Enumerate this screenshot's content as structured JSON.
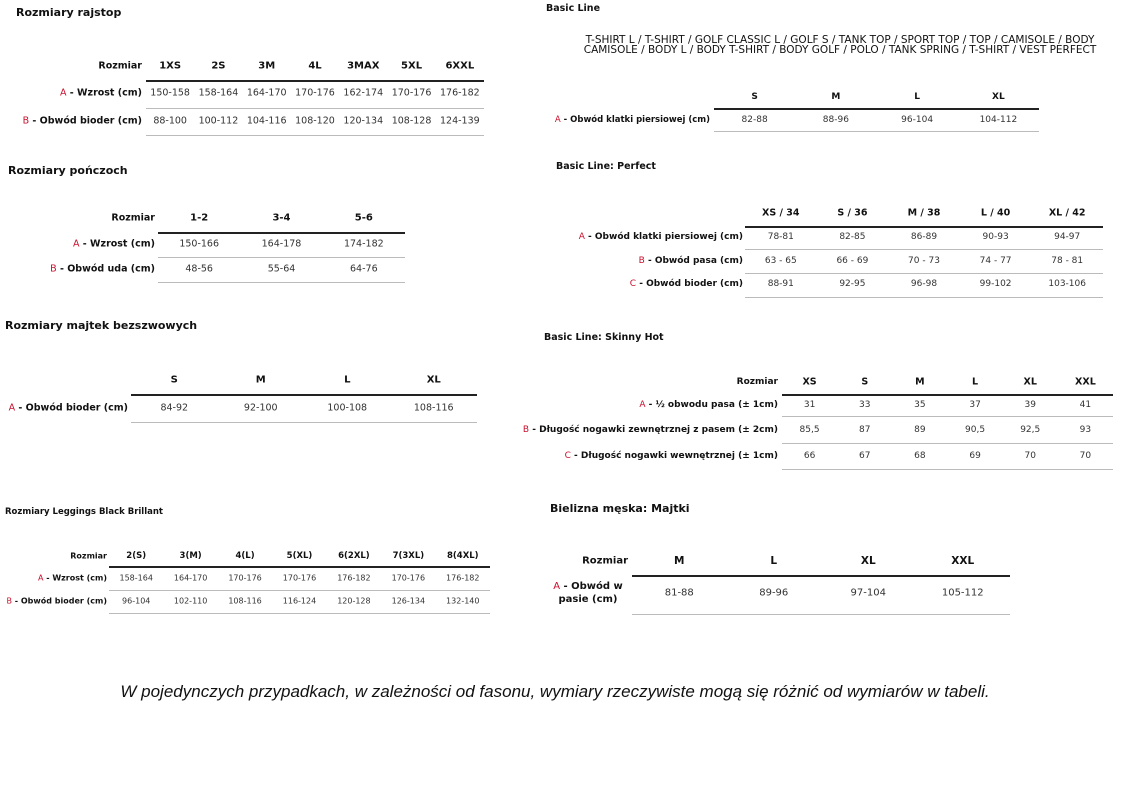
{
  "tables": [
    {
      "title": "Rozmiary rajstop",
      "corner": "Rozmiar",
      "sizes": [
        "1XS",
        "2S",
        "3M",
        "4L",
        "3MAX",
        "5XL",
        "6XXL"
      ],
      "rows": [
        {
          "letter": "A",
          "label": " - Wzrost (cm)",
          "values": [
            "150-158",
            "158-164",
            "164-170",
            "170-176",
            "162-174",
            "170-176",
            "176-182"
          ]
        },
        {
          "letter": "B",
          "label": " - Obwód bioder (cm)",
          "values": [
            "88-100",
            "100-112",
            "104-116",
            "108-120",
            "120-134",
            "108-128",
            "124-139"
          ]
        }
      ]
    },
    {
      "title": "Rozmiary pończoch",
      "corner": "Rozmiar",
      "sizes": [
        "1-2",
        "3-4",
        "5-6"
      ],
      "rows": [
        {
          "letter": "A",
          "label": " - Wzrost (cm)",
          "values": [
            "150-166",
            "164-178",
            "174-182"
          ]
        },
        {
          "letter": "B",
          "label": " - Obwód uda (cm)",
          "values": [
            "48-56",
            "55-64",
            "64-76"
          ]
        }
      ]
    },
    {
      "title": "Rozmiary majtek bezszwowych",
      "corner": "",
      "sizes": [
        "S",
        "M",
        "L",
        "XL"
      ],
      "rows": [
        {
          "letter": "A",
          "label": " - Obwód bioder (cm)",
          "values": [
            "84-92",
            "92-100",
            "100-108",
            "108-116"
          ]
        }
      ]
    },
    {
      "title": "Rozmiary Leggings Black Brillant",
      "corner": "Rozmiar",
      "sizes": [
        "2(S)",
        "3(M)",
        "4(L)",
        "5(XL)",
        "6(2XL)",
        "7(3XL)",
        "8(4XL)"
      ],
      "rows": [
        {
          "letter": "A",
          "label": " - Wzrost (cm)",
          "values": [
            "158-164",
            "164-170",
            "170-176",
            "170-176",
            "176-182",
            "170-176",
            "176-182"
          ]
        },
        {
          "letter": "B",
          "label": " - Obwód bioder (cm)",
          "values": [
            "96-104",
            "102-110",
            "108-116",
            "116-124",
            "120-128",
            "126-134",
            "132-140"
          ]
        }
      ]
    },
    {
      "title": "Basic Line",
      "description": [
        "T-SHIRT L / T-SHIRT / GOLF CLASSIC L / GOLF S / TANK TOP / SPORT TOP / TOP / CAMISOLE / BODY",
        "CAMISOLE / BODY L / BODY T-SHIRT / BODY GOLF / POLO / TANK SPRING / T-SHIRT / VEST PERFECT"
      ],
      "corner": "",
      "sizes": [
        "S",
        "M",
        "L",
        "XL"
      ],
      "rows": [
        {
          "letter": "A",
          "label": " - Obwód klatki piersiowej (cm)",
          "values": [
            "82-88",
            "88-96",
            "96-104",
            "104-112"
          ]
        }
      ]
    },
    {
      "title": "Basic Line: Perfect",
      "corner": "",
      "sizes": [
        "XS / 34",
        "S / 36",
        "M / 38",
        "L / 40",
        "XL / 42"
      ],
      "rows": [
        {
          "letter": "A",
          "label": " - Obwód klatki piersiowej (cm)",
          "values": [
            "78-81",
            "82-85",
            "86-89",
            "90-93",
            "94-97"
          ]
        },
        {
          "letter": "B",
          "label": " - Obwód pasa (cm)",
          "values": [
            "63 - 65",
            "66 - 69",
            "70 - 73",
            "74 - 77",
            "78 - 81"
          ]
        },
        {
          "letter": "C",
          "label": " - Obwód bioder (cm)",
          "values": [
            "88-91",
            "92-95",
            "96-98",
            "99-102",
            "103-106"
          ]
        }
      ]
    },
    {
      "title": "Basic Line: Skinny Hot",
      "corner": "Rozmiar",
      "sizes": [
        "XS",
        "S",
        "M",
        "L",
        "XL",
        "XXL"
      ],
      "rows": [
        {
          "letter": "A",
          "label": " - ½ obwodu pasa (± 1cm)",
          "values": [
            "31",
            "33",
            "35",
            "37",
            "39",
            "41"
          ]
        },
        {
          "letter": "B",
          "label": " - Długość nogawki zewnętrznej z pasem (± 2cm)",
          "values": [
            "85,5",
            "87",
            "89",
            "90,5",
            "92,5",
            "93"
          ]
        },
        {
          "letter": "C",
          "label": " - Długość nogawki wewnętrznej (± 1cm)",
          "values": [
            "66",
            "67",
            "68",
            "69",
            "70",
            "70"
          ]
        }
      ]
    },
    {
      "title": "Bielizna męska: Majtki",
      "corner": "Rozmiar",
      "sizes": [
        "M",
        "L",
        "XL",
        "XXL"
      ],
      "rows": [
        {
          "letter": "A",
          "label": " - Obwód w pasie (cm)",
          "values": [
            "81-88",
            "89-96",
            "97-104",
            "105-112"
          ]
        }
      ]
    }
  ],
  "footer": "W pojedynczych przypadkach, w zależności od fasonu, wymiary rzeczywiste mogą się różnić od wymiarów w tabeli.",
  "colors": {
    "letter": "#c8102e",
    "text": "#111111",
    "rule": "#222222"
  }
}
